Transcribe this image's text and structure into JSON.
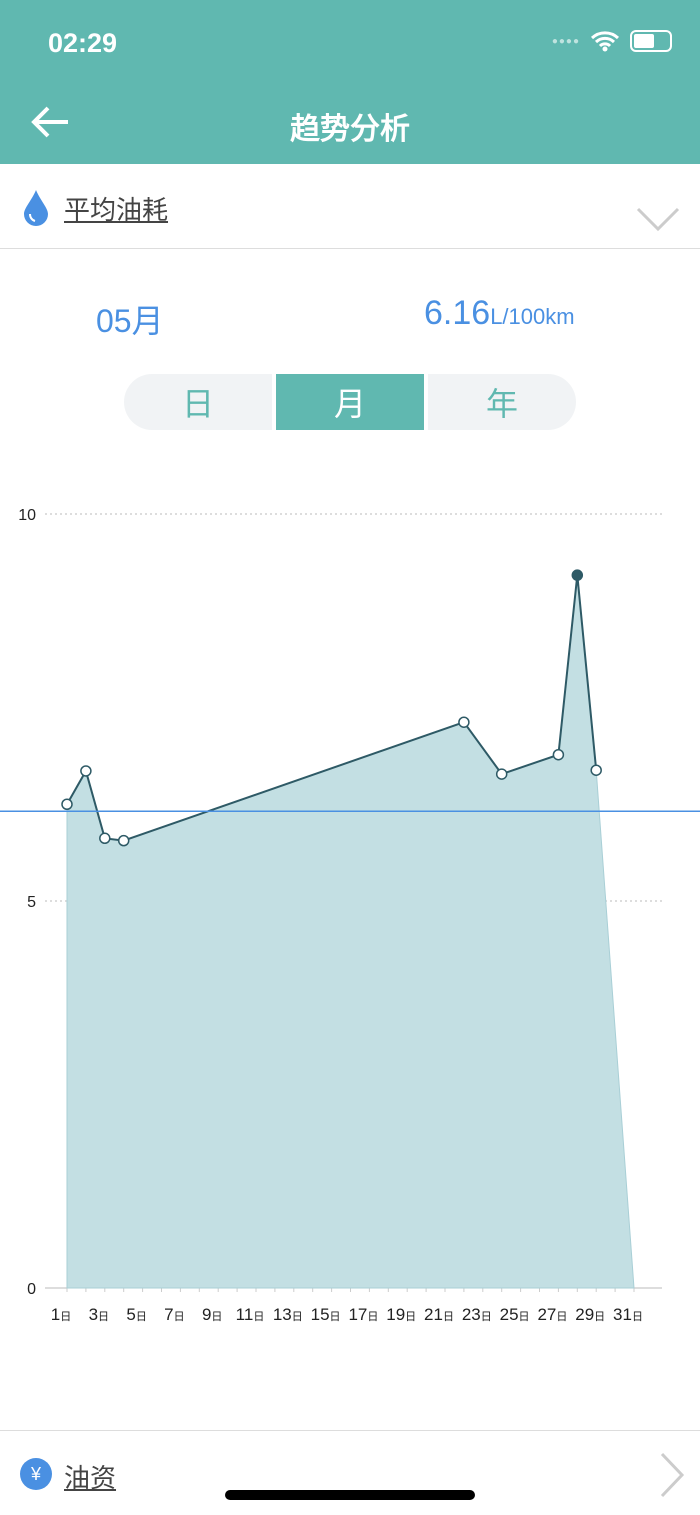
{
  "status_bar": {
    "time": "02:29"
  },
  "header": {
    "title": "趋势分析",
    "back_icon": "arrow-left-icon"
  },
  "selector": {
    "label": "平均油耗",
    "icon": "water-drop-icon",
    "chevron": "chevron-down-icon"
  },
  "summary": {
    "month": "05月",
    "avg_value": "6.16",
    "avg_unit": "L/100km"
  },
  "segments": [
    {
      "label": "日",
      "active": false
    },
    {
      "label": "月",
      "active": true
    },
    {
      "label": "年",
      "active": false
    }
  ],
  "bottom": {
    "label": "油资",
    "icon": "yen-icon",
    "chevron": "chevron-right-icon"
  },
  "colors": {
    "header": "#60b8b0",
    "accent_blue": "#4a90e2",
    "area_fill": "#c3dfe3",
    "line": "#2e5a66",
    "avg_line": "#4a90e2"
  },
  "chart_data": {
    "type": "area",
    "x_unit": "日",
    "xlim": [
      1,
      31
    ],
    "ylim": [
      0,
      10
    ],
    "yticks": [
      0,
      5,
      10
    ],
    "xticks": [
      1,
      3,
      5,
      7,
      9,
      11,
      13,
      15,
      17,
      19,
      21,
      23,
      25,
      27,
      29,
      31
    ],
    "grid": "horizontal dotted",
    "average_line": 6.16,
    "points": [
      {
        "day": 1,
        "value": 6.25
      },
      {
        "day": 2,
        "value": 6.68
      },
      {
        "day": 3,
        "value": 5.81
      },
      {
        "day": 4,
        "value": 5.78
      },
      {
        "day": 22,
        "value": 7.31
      },
      {
        "day": 24,
        "value": 6.64
      },
      {
        "day": 27,
        "value": 6.89
      },
      {
        "day": 28,
        "value": 9.21
      },
      {
        "day": 29,
        "value": 6.69
      }
    ],
    "selected_day": 28
  }
}
